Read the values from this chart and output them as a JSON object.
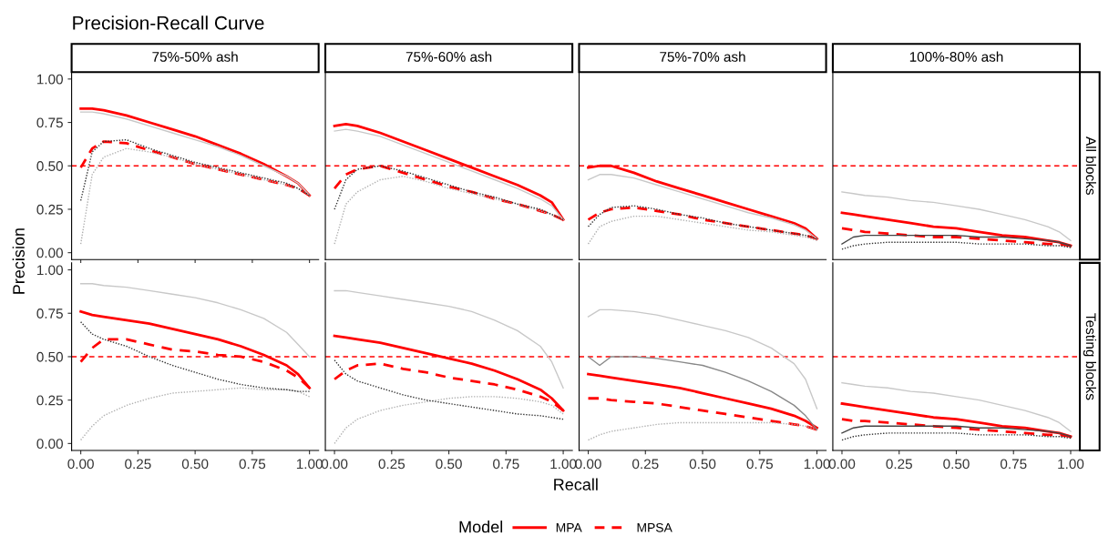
{
  "chart_data": [
    {
      "type": "line",
      "title": "75%-50% ash",
      "annotations": [
        "Precision-Recall Curve"
      ],
      "ylabel": "Precision",
      "legend_title": "Model",
      "legend": "bottom",
      "tick_labels": "y",
      "xlim": [
        -0.04,
        1.04
      ],
      "ylim": [
        -0.04,
        1.04
      ],
      "xticks": [
        0,
        0.25,
        0.5,
        0.75,
        1
      ],
      "yticks": [
        {
          "value": 0,
          "label": "0.00"
        },
        {
          "value": 0.25,
          "label": "0.25"
        },
        {
          "value": 0.5,
          "label": "0.50"
        },
        {
          "value": 0.75,
          "label": "0.75"
        },
        {
          "value": 1,
          "label": "1.00"
        }
      ],
      "grid": false,
      "x": [
        0,
        0.05,
        0.1,
        0.2,
        0.3,
        0.4,
        0.5,
        0.6,
        0.7,
        0.8,
        0.9,
        0.95,
        1
      ],
      "ref_lines": [
        {
          "axis": "y",
          "value": 0.5,
          "color": "#ff0000",
          "line_style": "dashed"
        }
      ],
      "series": [
        {
          "color": "#c8c8c8",
          "line_style": "solid",
          "values": [
            0.81,
            0.81,
            0.8,
            0.77,
            0.73,
            0.69,
            0.65,
            0.61,
            0.56,
            0.5,
            0.44,
            0.4,
            0.33
          ]
        },
        {
          "color": "#b0b0b0",
          "line_style": "dotted",
          "values": [
            0.05,
            0.45,
            0.55,
            0.6,
            0.58,
            0.55,
            0.51,
            0.48,
            0.45,
            0.42,
            0.39,
            0.37,
            0.33
          ]
        },
        {
          "color": "#333333",
          "line_style": "dotted",
          "values": [
            0.3,
            0.58,
            0.64,
            0.65,
            0.6,
            0.56,
            0.52,
            0.49,
            0.46,
            0.43,
            0.4,
            0.37,
            0.33
          ]
        },
        {
          "name": "MPA",
          "color": "#ff0000",
          "line_style": "solid",
          "values": [
            0.83,
            0.83,
            0.82,
            0.79,
            0.75,
            0.71,
            0.67,
            0.62,
            0.57,
            0.51,
            0.44,
            0.4,
            0.33
          ]
        },
        {
          "name": "MPSA",
          "color": "#ff0000",
          "line_style": "dashed",
          "values": [
            0.49,
            0.6,
            0.64,
            0.63,
            0.59,
            0.55,
            0.51,
            0.48,
            0.45,
            0.42,
            0.39,
            0.37,
            0.33
          ]
        }
      ]
    },
    {
      "type": "line",
      "title": "75%-60% ash",
      "tick_labels": false,
      "xlim": [
        -0.04,
        1.04
      ],
      "ylim": [
        -0.04,
        1.04
      ],
      "grid": false,
      "x": [
        0,
        0.05,
        0.1,
        0.2,
        0.3,
        0.4,
        0.5,
        0.6,
        0.7,
        0.8,
        0.9,
        0.95,
        1
      ],
      "ref_lines": [
        {
          "axis": "y",
          "value": 0.5,
          "color": "#ff0000",
          "line_style": "dashed"
        }
      ],
      "series": [
        {
          "color": "#c8c8c8",
          "line_style": "solid",
          "values": [
            0.7,
            0.71,
            0.7,
            0.67,
            0.62,
            0.57,
            0.52,
            0.47,
            0.42,
            0.37,
            0.31,
            0.27,
            0.19
          ]
        },
        {
          "color": "#b0b0b0",
          "line_style": "dotted",
          "values": [
            0.05,
            0.28,
            0.35,
            0.42,
            0.44,
            0.41,
            0.37,
            0.34,
            0.31,
            0.28,
            0.24,
            0.22,
            0.19
          ]
        },
        {
          "color": "#333333",
          "line_style": "dotted",
          "values": [
            0.25,
            0.42,
            0.48,
            0.5,
            0.47,
            0.43,
            0.39,
            0.35,
            0.32,
            0.28,
            0.25,
            0.22,
            0.19
          ]
        },
        {
          "name": "MPA",
          "color": "#ff0000",
          "line_style": "solid",
          "values": [
            0.73,
            0.74,
            0.73,
            0.69,
            0.64,
            0.59,
            0.54,
            0.49,
            0.44,
            0.39,
            0.33,
            0.29,
            0.19
          ]
        },
        {
          "name": "MPSA",
          "color": "#ff0000",
          "line_style": "dashed",
          "values": [
            0.37,
            0.45,
            0.48,
            0.5,
            0.46,
            0.42,
            0.38,
            0.35,
            0.31,
            0.28,
            0.24,
            0.22,
            0.19
          ]
        }
      ]
    },
    {
      "type": "line",
      "title": "75%-70% ash",
      "tick_labels": false,
      "xlim": [
        -0.04,
        1.04
      ],
      "ylim": [
        -0.04,
        1.04
      ],
      "grid": false,
      "x": [
        0,
        0.05,
        0.1,
        0.2,
        0.3,
        0.4,
        0.5,
        0.6,
        0.7,
        0.8,
        0.9,
        0.95,
        1
      ],
      "ref_lines": [
        {
          "axis": "y",
          "value": 0.5,
          "color": "#ff0000",
          "line_style": "dashed"
        }
      ],
      "series": [
        {
          "color": "#c8c8c8",
          "line_style": "solid",
          "values": [
            0.42,
            0.45,
            0.45,
            0.43,
            0.39,
            0.35,
            0.31,
            0.27,
            0.23,
            0.2,
            0.16,
            0.13,
            0.08
          ]
        },
        {
          "color": "#b0b0b0",
          "line_style": "dotted",
          "values": [
            0.05,
            0.15,
            0.18,
            0.21,
            0.21,
            0.19,
            0.17,
            0.15,
            0.13,
            0.12,
            0.1,
            0.09,
            0.07
          ]
        },
        {
          "color": "#333333",
          "line_style": "dotted",
          "values": [
            0.15,
            0.22,
            0.26,
            0.27,
            0.25,
            0.22,
            0.2,
            0.17,
            0.15,
            0.13,
            0.11,
            0.1,
            0.08
          ]
        },
        {
          "name": "MPA",
          "color": "#ff0000",
          "line_style": "solid",
          "values": [
            0.49,
            0.5,
            0.5,
            0.46,
            0.41,
            0.37,
            0.33,
            0.29,
            0.25,
            0.21,
            0.17,
            0.14,
            0.08
          ]
        },
        {
          "name": "MPSA",
          "color": "#ff0000",
          "line_style": "dashed",
          "values": [
            0.19,
            0.23,
            0.25,
            0.26,
            0.24,
            0.22,
            0.19,
            0.17,
            0.15,
            0.13,
            0.11,
            0.1,
            0.08
          ]
        }
      ]
    },
    {
      "type": "line",
      "title": "100%-80% ash",
      "y2label": "All blocks",
      "tick_labels": false,
      "xlim": [
        -0.04,
        1.04
      ],
      "ylim": [
        -0.04,
        1.04
      ],
      "grid": false,
      "x": [
        0,
        0.05,
        0.1,
        0.2,
        0.3,
        0.4,
        0.5,
        0.6,
        0.7,
        0.8,
        0.9,
        0.95,
        1
      ],
      "ref_lines": [
        {
          "axis": "y",
          "value": 0.5,
          "color": "#ff0000",
          "line_style": "dashed"
        }
      ],
      "series": [
        {
          "color": "#c8c8c8",
          "line_style": "solid",
          "values": [
            0.35,
            0.34,
            0.33,
            0.32,
            0.3,
            0.29,
            0.27,
            0.25,
            0.22,
            0.19,
            0.15,
            0.12,
            0.07
          ]
        },
        {
          "color": "#444444",
          "line_style": "solid",
          "values": [
            0.05,
            0.09,
            0.1,
            0.1,
            0.1,
            0.1,
            0.1,
            0.09,
            0.09,
            0.08,
            0.07,
            0.06,
            0.04
          ]
        },
        {
          "color": "#333333",
          "line_style": "dotted",
          "values": [
            0.02,
            0.04,
            0.05,
            0.06,
            0.06,
            0.06,
            0.06,
            0.05,
            0.05,
            0.05,
            0.04,
            0.04,
            0.03
          ]
        },
        {
          "name": "MPA",
          "color": "#ff0000",
          "line_style": "solid",
          "values": [
            0.23,
            0.22,
            0.21,
            0.19,
            0.17,
            0.15,
            0.14,
            0.12,
            0.1,
            0.09,
            0.07,
            0.06,
            0.04
          ]
        },
        {
          "name": "MPSA",
          "color": "#ff0000",
          "line_style": "dashed",
          "values": [
            0.14,
            0.13,
            0.12,
            0.11,
            0.1,
            0.09,
            0.09,
            0.08,
            0.07,
            0.06,
            0.05,
            0.05,
            0.04
          ]
        }
      ]
    },
    {
      "type": "line",
      "tick_labels": "xy",
      "xlim": [
        -0.04,
        1.04
      ],
      "ylim": [
        -0.04,
        1.04
      ],
      "xticks": [
        {
          "value": 0,
          "label": "0.00"
        },
        {
          "value": 0.25,
          "label": "0.25"
        },
        {
          "value": 0.5,
          "label": "0.50"
        },
        {
          "value": 0.75,
          "label": "0.75"
        },
        {
          "value": 1,
          "label": "1.00"
        }
      ],
      "yticks": [
        {
          "value": 0,
          "label": "0.00"
        },
        {
          "value": 0.25,
          "label": "0.25"
        },
        {
          "value": 0.5,
          "label": "0.50"
        },
        {
          "value": 0.75,
          "label": "0.75"
        },
        {
          "value": 1,
          "label": "1.00"
        }
      ],
      "grid": false,
      "x": [
        0,
        0.05,
        0.1,
        0.2,
        0.3,
        0.4,
        0.5,
        0.6,
        0.7,
        0.8,
        0.9,
        0.95,
        1
      ],
      "ref_lines": [
        {
          "axis": "y",
          "value": 0.5,
          "color": "#ff0000",
          "line_style": "dashed"
        }
      ],
      "series": [
        {
          "color": "#c8c8c8",
          "line_style": "solid",
          "values": [
            0.92,
            0.92,
            0.91,
            0.9,
            0.88,
            0.86,
            0.84,
            0.81,
            0.77,
            0.72,
            0.64,
            0.57,
            0.5
          ]
        },
        {
          "color": "#b0b0b0",
          "line_style": "dotted",
          "values": [
            0.02,
            0.1,
            0.16,
            0.22,
            0.26,
            0.29,
            0.3,
            0.31,
            0.32,
            0.31,
            0.31,
            0.3,
            0.27
          ]
        },
        {
          "color": "#333333",
          "line_style": "dotted",
          "values": [
            0.7,
            0.63,
            0.6,
            0.56,
            0.5,
            0.45,
            0.41,
            0.37,
            0.34,
            0.32,
            0.31,
            0.3,
            0.3
          ]
        },
        {
          "name": "MPA",
          "color": "#ff0000",
          "line_style": "solid",
          "values": [
            0.76,
            0.74,
            0.73,
            0.71,
            0.69,
            0.66,
            0.63,
            0.6,
            0.56,
            0.51,
            0.45,
            0.4,
            0.32
          ]
        },
        {
          "name": "MPSA",
          "color": "#ff0000",
          "line_style": "dashed",
          "values": [
            0.47,
            0.55,
            0.6,
            0.6,
            0.57,
            0.54,
            0.53,
            0.51,
            0.5,
            0.47,
            0.42,
            0.38,
            0.32
          ]
        }
      ]
    },
    {
      "type": "line",
      "xlabel": "Recall",
      "tick_labels": "x",
      "xlim": [
        -0.04,
        1.04
      ],
      "ylim": [
        -0.04,
        1.04
      ],
      "xticks": [
        {
          "value": 0,
          "label": "0.00"
        },
        {
          "value": 0.25,
          "label": "0.25"
        },
        {
          "value": 0.5,
          "label": "0.50"
        },
        {
          "value": 0.75,
          "label": "0.75"
        },
        {
          "value": 1,
          "label": "1.00"
        }
      ],
      "grid": false,
      "x": [
        0,
        0.05,
        0.1,
        0.2,
        0.3,
        0.4,
        0.5,
        0.6,
        0.7,
        0.8,
        0.9,
        0.95,
        1
      ],
      "ref_lines": [
        {
          "axis": "y",
          "value": 0.5,
          "color": "#ff0000",
          "line_style": "dashed"
        }
      ],
      "series": [
        {
          "color": "#c8c8c8",
          "line_style": "solid",
          "values": [
            0.88,
            0.88,
            0.87,
            0.85,
            0.83,
            0.81,
            0.79,
            0.76,
            0.71,
            0.65,
            0.56,
            0.47,
            0.32
          ]
        },
        {
          "color": "#b0b0b0",
          "line_style": "dotted",
          "values": [
            0.0,
            0.09,
            0.14,
            0.19,
            0.22,
            0.24,
            0.26,
            0.27,
            0.27,
            0.26,
            0.24,
            0.22,
            0.17
          ]
        },
        {
          "color": "#333333",
          "line_style": "dotted",
          "values": [
            0.48,
            0.4,
            0.36,
            0.32,
            0.28,
            0.25,
            0.23,
            0.21,
            0.19,
            0.17,
            0.16,
            0.15,
            0.14
          ]
        },
        {
          "name": "MPA",
          "color": "#ff0000",
          "line_style": "solid",
          "values": [
            0.62,
            0.61,
            0.6,
            0.58,
            0.55,
            0.52,
            0.49,
            0.46,
            0.42,
            0.37,
            0.31,
            0.26,
            0.19
          ]
        },
        {
          "name": "MPSA",
          "color": "#ff0000",
          "line_style": "dashed",
          "values": [
            0.37,
            0.42,
            0.45,
            0.46,
            0.43,
            0.41,
            0.38,
            0.36,
            0.34,
            0.31,
            0.27,
            0.24,
            0.19
          ]
        }
      ]
    },
    {
      "type": "line",
      "tick_labels": "x",
      "xlim": [
        -0.04,
        1.04
      ],
      "ylim": [
        -0.04,
        1.04
      ],
      "xticks": [
        {
          "value": 0,
          "label": "0.00"
        },
        {
          "value": 0.25,
          "label": "0.25"
        },
        {
          "value": 0.5,
          "label": "0.50"
        },
        {
          "value": 0.75,
          "label": "0.75"
        },
        {
          "value": 1,
          "label": "1.00"
        }
      ],
      "grid": false,
      "x": [
        0,
        0.05,
        0.1,
        0.2,
        0.3,
        0.4,
        0.5,
        0.6,
        0.7,
        0.8,
        0.9,
        0.95,
        1
      ],
      "ref_lines": [
        {
          "axis": "y",
          "value": 0.5,
          "color": "#ff0000",
          "line_style": "dashed"
        }
      ],
      "series": [
        {
          "color": "#c8c8c8",
          "line_style": "solid",
          "values": [
            0.73,
            0.77,
            0.77,
            0.76,
            0.74,
            0.71,
            0.68,
            0.65,
            0.61,
            0.55,
            0.46,
            0.37,
            0.2
          ]
        },
        {
          "color": "#b0b0b0",
          "line_style": "dotted",
          "values": [
            0.02,
            0.05,
            0.07,
            0.09,
            0.11,
            0.12,
            0.12,
            0.12,
            0.12,
            0.12,
            0.11,
            0.1,
            0.08
          ]
        },
        {
          "color": "#888888",
          "line_style": "solid",
          "values": [
            0.5,
            0.45,
            0.5,
            0.5,
            0.49,
            0.47,
            0.45,
            0.41,
            0.36,
            0.3,
            0.22,
            0.16,
            0.08
          ]
        },
        {
          "name": "MPA",
          "color": "#ff0000",
          "line_style": "solid",
          "values": [
            0.4,
            0.39,
            0.38,
            0.36,
            0.34,
            0.32,
            0.29,
            0.26,
            0.23,
            0.2,
            0.16,
            0.13,
            0.09
          ]
        },
        {
          "name": "MPSA",
          "color": "#ff0000",
          "line_style": "dashed",
          "values": [
            0.26,
            0.26,
            0.25,
            0.24,
            0.23,
            0.21,
            0.19,
            0.17,
            0.15,
            0.13,
            0.11,
            0.1,
            0.08
          ]
        }
      ]
    },
    {
      "type": "line",
      "y2label": "Testing blocks",
      "tick_labels": "x",
      "xlim": [
        -0.04,
        1.04
      ],
      "ylim": [
        -0.04,
        1.04
      ],
      "xticks": [
        {
          "value": 0,
          "label": "0.00"
        },
        {
          "value": 0.25,
          "label": "0.25"
        },
        {
          "value": 0.5,
          "label": "0.50"
        },
        {
          "value": 0.75,
          "label": "0.75"
        },
        {
          "value": 1,
          "label": "1.00"
        }
      ],
      "grid": false,
      "x": [
        0,
        0.05,
        0.1,
        0.2,
        0.3,
        0.4,
        0.5,
        0.6,
        0.7,
        0.8,
        0.9,
        0.95,
        1
      ],
      "ref_lines": [
        {
          "axis": "y",
          "value": 0.5,
          "color": "#ff0000",
          "line_style": "dashed"
        }
      ],
      "series": [
        {
          "color": "#c8c8c8",
          "line_style": "solid",
          "values": [
            0.35,
            0.34,
            0.33,
            0.32,
            0.3,
            0.29,
            0.27,
            0.25,
            0.22,
            0.19,
            0.15,
            0.12,
            0.07
          ]
        },
        {
          "color": "#444444",
          "line_style": "solid",
          "values": [
            0.06,
            0.09,
            0.1,
            0.1,
            0.1,
            0.1,
            0.1,
            0.09,
            0.09,
            0.08,
            0.07,
            0.06,
            0.04
          ]
        },
        {
          "color": "#333333",
          "line_style": "dotted",
          "values": [
            0.02,
            0.04,
            0.05,
            0.06,
            0.06,
            0.06,
            0.06,
            0.05,
            0.05,
            0.05,
            0.04,
            0.04,
            0.03
          ]
        },
        {
          "name": "MPA",
          "color": "#ff0000",
          "line_style": "solid",
          "values": [
            0.23,
            0.22,
            0.21,
            0.19,
            0.17,
            0.15,
            0.14,
            0.12,
            0.1,
            0.09,
            0.07,
            0.06,
            0.04
          ]
        },
        {
          "name": "MPSA",
          "color": "#ff0000",
          "line_style": "dashed",
          "values": [
            0.14,
            0.13,
            0.13,
            0.12,
            0.11,
            0.1,
            0.09,
            0.08,
            0.07,
            0.06,
            0.05,
            0.05,
            0.04
          ]
        }
      ]
    }
  ]
}
